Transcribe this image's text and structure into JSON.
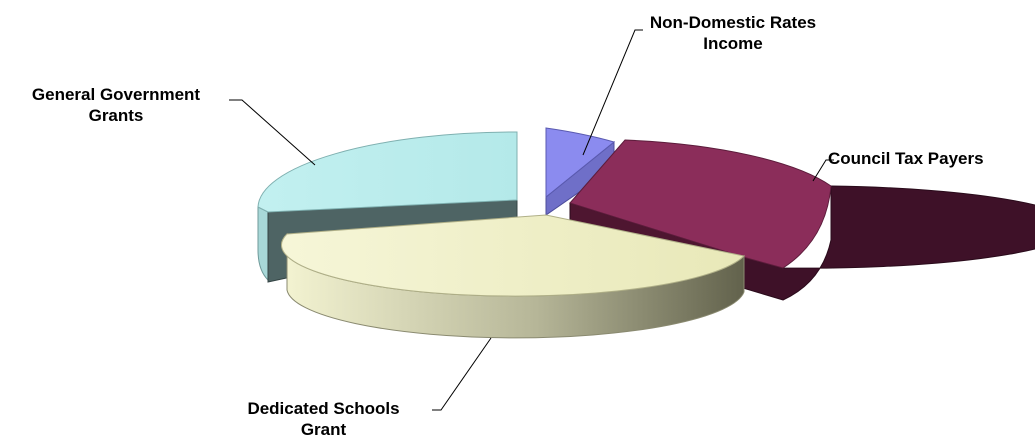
{
  "chart_data": {
    "type": "pie",
    "title": "",
    "style": "3d-exploded",
    "slices": [
      {
        "label_lines": [
          "Non-Domestic Rates",
          "Income"
        ],
        "value": 4.5,
        "color": "#8b8bef"
      },
      {
        "label_lines": [
          "Council Tax Payers"
        ],
        "value": 28,
        "color": "#8b2d5a"
      },
      {
        "label_lines": [
          "Dedicated Schools",
          "Grant"
        ],
        "value": 38,
        "color": "#efefc2"
      },
      {
        "label_lines": [
          "General Government",
          "Grants"
        ],
        "value": 29.5,
        "color": "#b9ecec"
      }
    ]
  }
}
